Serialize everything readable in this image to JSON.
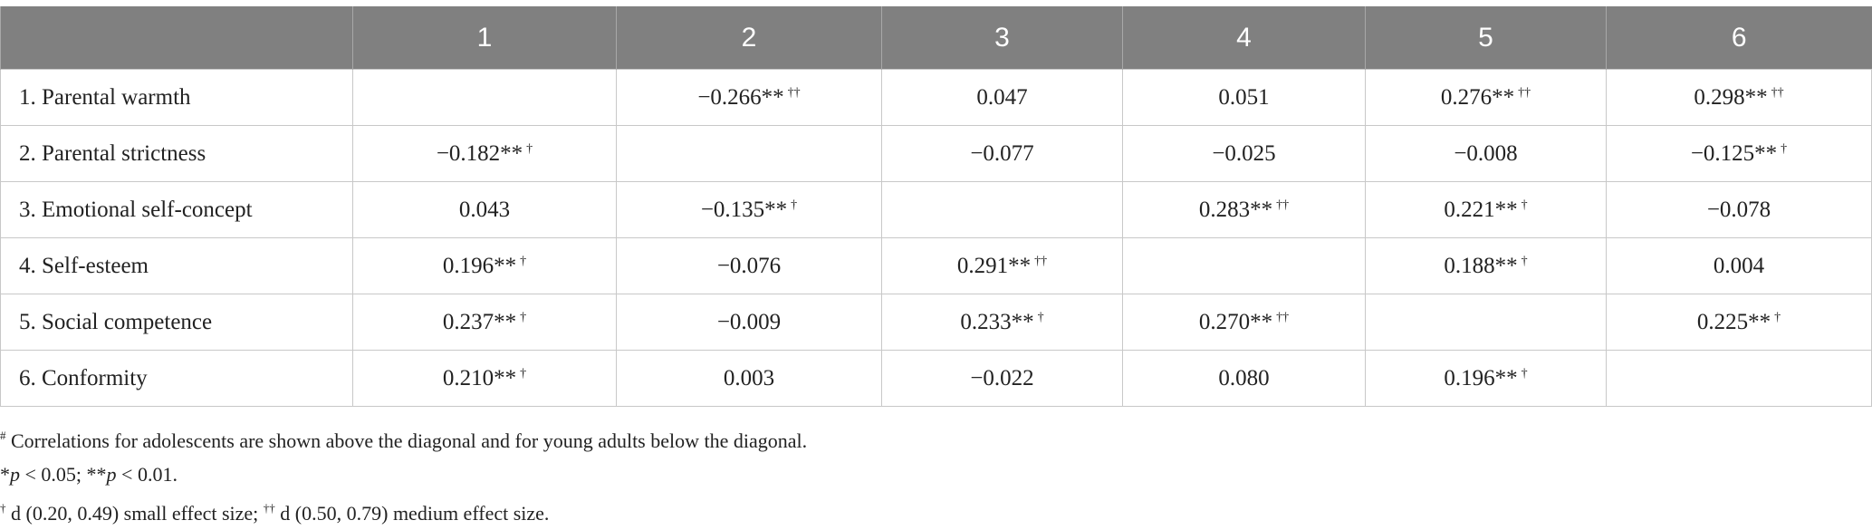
{
  "table": {
    "headers": [
      "1",
      "2",
      "3",
      "4",
      "5",
      "6"
    ],
    "rows": [
      {
        "label": "1. Parental warmth",
        "cells": [
          null,
          {
            "text": "−0.266**",
            "sup": "††"
          },
          {
            "text": "0.047"
          },
          {
            "text": "0.051"
          },
          {
            "text": "0.276**",
            "sup": "††"
          },
          {
            "text": "0.298**",
            "sup": "††"
          }
        ]
      },
      {
        "label": "2. Parental strictness",
        "cells": [
          {
            "text": "−0.182**",
            "sup": "†"
          },
          null,
          {
            "text": "−0.077"
          },
          {
            "text": "−0.025"
          },
          {
            "text": "−0.008"
          },
          {
            "text": "−0.125**",
            "sup": "†"
          }
        ]
      },
      {
        "label": "3. Emotional self-concept",
        "cells": [
          {
            "text": "0.043"
          },
          {
            "text": "−0.135**",
            "sup": "†"
          },
          null,
          {
            "text": "0.283**",
            "sup": "††"
          },
          {
            "text": "0.221**",
            "sup": "†"
          },
          {
            "text": "−0.078"
          }
        ]
      },
      {
        "label": "4. Self-esteem",
        "cells": [
          {
            "text": "0.196**",
            "sup": "†"
          },
          {
            "text": "−0.076"
          },
          {
            "text": "0.291**",
            "sup": "††"
          },
          null,
          {
            "text": "0.188**",
            "sup": "†"
          },
          {
            "text": "0.004"
          }
        ]
      },
      {
        "label": "5. Social competence",
        "cells": [
          {
            "text": "0.237**",
            "sup": "†"
          },
          {
            "text": "−0.009"
          },
          {
            "text": "0.233**",
            "sup": "†"
          },
          {
            "text": "0.270**",
            "sup": "††"
          },
          null,
          {
            "text": "0.225**",
            "sup": "†"
          }
        ]
      },
      {
        "label": "6. Conformity",
        "cells": [
          {
            "text": "0.210**",
            "sup": "†"
          },
          {
            "text": "0.003"
          },
          {
            "text": "−0.022"
          },
          {
            "text": "0.080"
          },
          {
            "text": "0.196**",
            "sup": "†"
          },
          null
        ]
      }
    ]
  },
  "notes": [
    [
      {
        "t": "#",
        "style": "sup"
      },
      {
        "t": " Correlations for adolescents are shown above the diagonal and for young adults below the diagonal."
      }
    ],
    [
      {
        "t": "*"
      },
      {
        "t": "p",
        "style": "i"
      },
      {
        "t": " < 0.05; **"
      },
      {
        "t": "p",
        "style": "i"
      },
      {
        "t": " < 0.01."
      }
    ],
    [
      {
        "t": "†",
        "style": "sup"
      },
      {
        "t": " d (0.20, 0.49) small effect size; "
      },
      {
        "t": "††",
        "style": "sup"
      },
      {
        "t": " d (0.50, 0.79) medium effect size."
      }
    ]
  ]
}
